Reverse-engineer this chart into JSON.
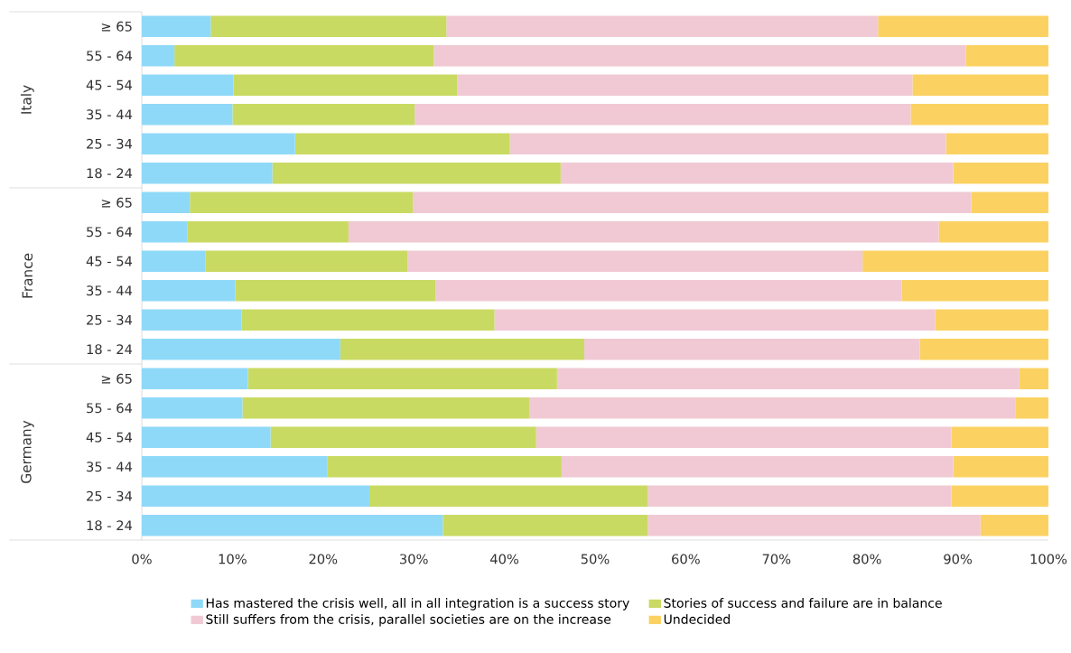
{
  "chart_data": {
    "type": "bar",
    "orientation": "horizontal",
    "stacked": true,
    "categories": [
      "≥ 65",
      "55 - 64",
      "45 - 54",
      "35 - 44",
      "25 - 34",
      "18 - 24",
      "≥ 65",
      "55 - 64",
      "45 - 54",
      "35 - 44",
      "25 - 34",
      "18 - 24",
      "≥ 65",
      "55 - 64",
      "45 - 54",
      "35 - 44",
      "25 - 34",
      "18 - 24"
    ],
    "series": [
      {
        "name": "Has mastered the crisis well, all in all integration is a success story",
        "color": "#8fd9f8",
        "values": [
          7.6,
          3.6,
          10.1,
          10.0,
          16.9,
          14.4,
          5.3,
          5.0,
          7.0,
          10.3,
          11.0,
          21.9,
          11.7,
          11.1,
          14.2,
          20.5,
          25.1,
          33.2
        ]
      },
      {
        "name": "Stories of success and failure are in balance",
        "color": "#c9da62",
        "values": [
          26.0,
          28.6,
          24.7,
          20.1,
          23.7,
          31.8,
          24.6,
          17.8,
          22.3,
          22.1,
          27.9,
          26.9,
          34.1,
          31.7,
          29.3,
          25.8,
          30.7,
          22.6
        ]
      },
      {
        "name": "Still suffers from the crisis, parallel societies are on the increase",
        "color": "#f0c9d4",
        "values": [
          47.6,
          58.7,
          50.2,
          54.7,
          48.1,
          43.3,
          61.6,
          65.1,
          50.2,
          51.4,
          48.6,
          37.0,
          51.0,
          53.6,
          45.8,
          43.2,
          33.5,
          36.7
        ]
      },
      {
        "name": "Undecided",
        "color": "#fbd262",
        "values": [
          18.8,
          9.1,
          15.0,
          15.2,
          11.3,
          10.5,
          8.5,
          12.1,
          20.5,
          16.2,
          12.5,
          14.2,
          3.2,
          3.6,
          10.7,
          10.5,
          10.7,
          7.5
        ]
      }
    ],
    "xlim": [
      0,
      100
    ],
    "xticks": [
      {
        "value": 0,
        "label": "0%"
      },
      {
        "value": 10,
        "label": "10%"
      },
      {
        "value": 20,
        "label": "20%"
      },
      {
        "value": 30,
        "label": "30%"
      },
      {
        "value": 40,
        "label": "40%"
      },
      {
        "value": 50,
        "label": "50%"
      },
      {
        "value": 60,
        "label": "60%"
      },
      {
        "value": 70,
        "label": "70%"
      },
      {
        "value": 80,
        "label": "80%"
      },
      {
        "value": 90,
        "label": "90%"
      },
      {
        "value": 100,
        "label": "100%"
      }
    ],
    "annotations": [
      "Italy",
      "France",
      "Germany"
    ],
    "legend": "bottom"
  }
}
